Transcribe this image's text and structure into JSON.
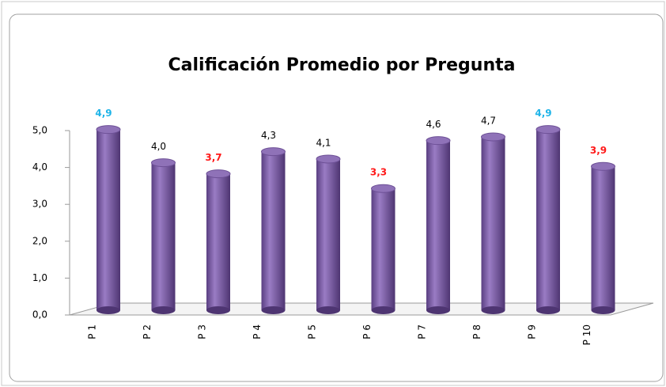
{
  "chart_data": {
    "type": "bar",
    "title": "Calificación Promedio por Pregunta",
    "categories": [
      "P 1",
      "P 2",
      "P 3",
      "P 4",
      "P 5",
      "P 6",
      "P 7",
      "P 8",
      "P 9",
      "P 10"
    ],
    "values": [
      4.9,
      4.0,
      3.7,
      4.3,
      4.1,
      3.3,
      4.6,
      4.7,
      4.9,
      3.9
    ],
    "value_labels": [
      "4,9",
      "4,0",
      "3,7",
      "4,3",
      "4,1",
      "3,3",
      "4,6",
      "4,7",
      "4,9",
      "3,9"
    ],
    "value_label_colors": [
      "#1fb4e8",
      "#000000",
      "#ff1a1a",
      "#000000",
      "#000000",
      "#ff1a1a",
      "#000000",
      "#000000",
      "#1fb4e8",
      "#ff1a1a"
    ],
    "color": "#7f5fa8",
    "ylim": [
      0,
      5
    ],
    "yticks": [
      {
        "value": 0,
        "label": "0,0"
      },
      {
        "value": 1,
        "label": "1,0"
      },
      {
        "value": 2,
        "label": "2,0"
      },
      {
        "value": 3,
        "label": "3,0"
      },
      {
        "value": 4,
        "label": "4,0"
      },
      {
        "value": 5,
        "label": "5,0"
      }
    ],
    "grid": false
  }
}
